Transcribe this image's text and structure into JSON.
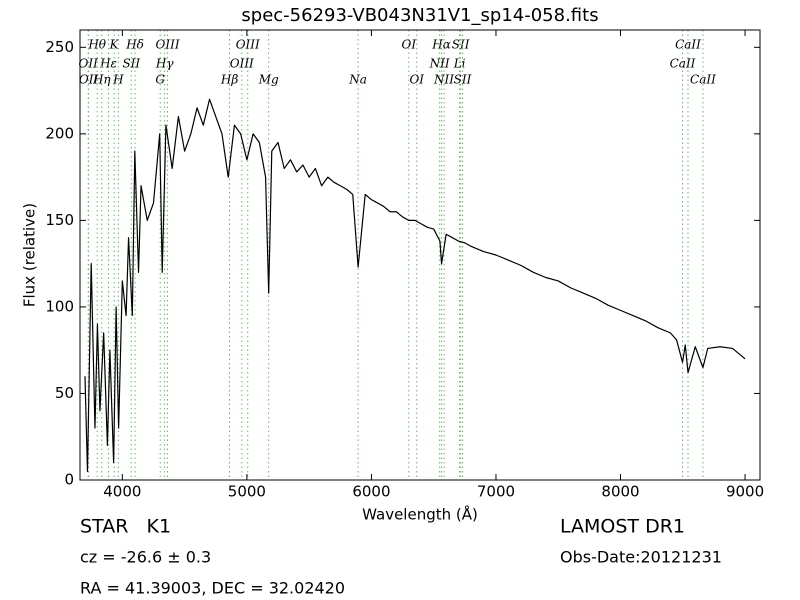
{
  "chart_data": {
    "type": "line",
    "title": "spec-56293-VB043N31V1_sp14-058.fits",
    "x_label": "Wavelength (Å)",
    "y_label": "Flux (relative)",
    "xlim": [
      3660,
      9120
    ],
    "ylim": [
      0,
      260
    ],
    "xticks": [
      4000,
      5000,
      6000,
      7000,
      8000,
      9000
    ],
    "yticks": [
      0,
      50,
      100,
      150,
      200,
      250
    ],
    "grid": false,
    "series": [
      {
        "name": null,
        "color": "#000000",
        "x": [
          3700,
          3720,
          3750,
          3780,
          3800,
          3820,
          3850,
          3880,
          3900,
          3930,
          3950,
          3970,
          4000,
          4030,
          4050,
          4080,
          4100,
          4130,
          4150,
          4200,
          4250,
          4300,
          4320,
          4350,
          4400,
          4450,
          4500,
          4550,
          4600,
          4650,
          4700,
          4750,
          4800,
          4850,
          4900,
          4950,
          5000,
          5050,
          5100,
          5150,
          5175,
          5200,
          5250,
          5300,
          5350,
          5400,
          5450,
          5500,
          5550,
          5600,
          5650,
          5700,
          5750,
          5800,
          5850,
          5893,
          5950,
          6000,
          6050,
          6100,
          6150,
          6200,
          6250,
          6300,
          6350,
          6400,
          6450,
          6500,
          6550,
          6563,
          6600,
          6650,
          6700,
          6750,
          6800,
          6900,
          7000,
          7100,
          7200,
          7300,
          7400,
          7500,
          7600,
          7700,
          7800,
          7900,
          8000,
          8100,
          8200,
          8300,
          8400,
          8450,
          8498,
          8520,
          8542,
          8600,
          8662,
          8700,
          8800,
          8900,
          9000
        ],
        "values": [
          60,
          5,
          125,
          30,
          90,
          40,
          85,
          20,
          75,
          10,
          100,
          30,
          115,
          95,
          140,
          95,
          190,
          120,
          170,
          150,
          160,
          200,
          120,
          205,
          180,
          210,
          190,
          200,
          215,
          205,
          220,
          210,
          200,
          175,
          205,
          200,
          185,
          200,
          195,
          175,
          108,
          190,
          195,
          180,
          185,
          178,
          182,
          175,
          180,
          170,
          175,
          172,
          170,
          168,
          165,
          123,
          165,
          162,
          160,
          158,
          155,
          155,
          152,
          150,
          150,
          148,
          146,
          145,
          138,
          125,
          142,
          140,
          138,
          137,
          135,
          132,
          130,
          127,
          124,
          120,
          117,
          115,
          111,
          108,
          105,
          101,
          98,
          95,
          92,
          88,
          85,
          81,
          68,
          78,
          62,
          77,
          65,
          76,
          77,
          76,
          70
        ]
      }
    ],
    "line_color": "#66bb66",
    "line_labels": [
      [
        {
          "label": "Hθ",
          "x": 3798
        },
        {
          "label": "K",
          "x": 3934
        },
        {
          "label": "Hδ",
          "x": 4102
        },
        {
          "label": "OIII",
          "x": 4363
        },
        {
          "label": "OIII",
          "x": 5007
        },
        {
          "label": "OI",
          "x": 6300
        },
        {
          "label": "Hα",
          "x": 6563
        },
        {
          "label": "SII",
          "x": 6716
        },
        {
          "label": "CaII",
          "x": 8542
        }
      ],
      [
        {
          "label": "OII",
          "x": 3726
        },
        {
          "label": "Hε",
          "x": 3889
        },
        {
          "label": "SII",
          "x": 4072
        },
        {
          "label": "Hγ",
          "x": 4340
        },
        {
          "label": "OIII",
          "x": 4959
        },
        {
          "label": "NII",
          "x": 6548
        },
        {
          "label": "Li",
          "x": 6708
        },
        {
          "label": "CaII",
          "x": 8498
        }
      ],
      [
        {
          "label": "OII",
          "x": 3729
        },
        {
          "label": "Hη",
          "x": 3835
        },
        {
          "label": "H",
          "x": 3968
        },
        {
          "label": "G",
          "x": 4304
        },
        {
          "label": "Hβ",
          "x": 4861
        },
        {
          "label": "Mg",
          "x": 5175
        },
        {
          "label": "Na",
          "x": 5893
        },
        {
          "label": "OI",
          "x": 6364
        },
        {
          "label": "NII",
          "x": 6583
        },
        {
          "label": "SII",
          "x": 6731
        },
        {
          "label": "CaII",
          "x": 8662
        }
      ]
    ]
  },
  "info": {
    "object": "STAR   K1",
    "cz": "cz = -26.6 ± 0.3",
    "coords": "RA = 41.39003, DEC = 32.02420",
    "survey": "LAMOST DR1",
    "obs_date": "Obs-Date:20121231"
  }
}
